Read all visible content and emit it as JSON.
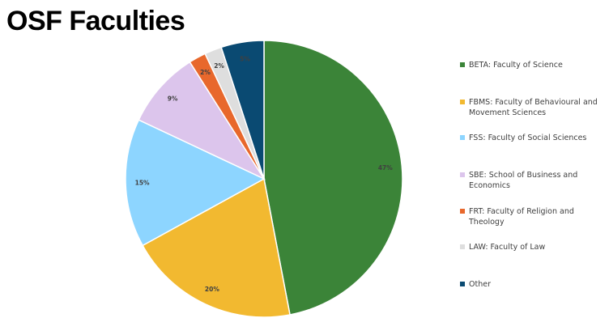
{
  "title": "OSF Faculties",
  "chart_data": {
    "type": "pie",
    "title": "OSF Faculties",
    "legend_position": "right",
    "slices": [
      {
        "name": "BETA: Faculty of Science",
        "value": 47,
        "label": "47%",
        "color": "#3b8438"
      },
      {
        "name": "FBMS: Faculty of Behavioural and Movement Sciences",
        "value": 20,
        "label": "20%",
        "color": "#f2b930"
      },
      {
        "name": "FSS: Faculty of Social Sciences",
        "value": 15,
        "label": "15%",
        "color": "#8dd5ff"
      },
      {
        "name": "SBE: School of Business and Economics",
        "value": 9,
        "label": "9%",
        "color": "#dcc5ec"
      },
      {
        "name": "FRT: Faculty of Religion and Theology",
        "value": 2,
        "label": "2%",
        "color": "#e8682c"
      },
      {
        "name": "LAW: Faculty of Law",
        "value": 2,
        "label": "2%",
        "color": "#dedede"
      },
      {
        "name": "Other",
        "value": 5,
        "label": "5%",
        "color": "#0a4a72"
      }
    ]
  }
}
